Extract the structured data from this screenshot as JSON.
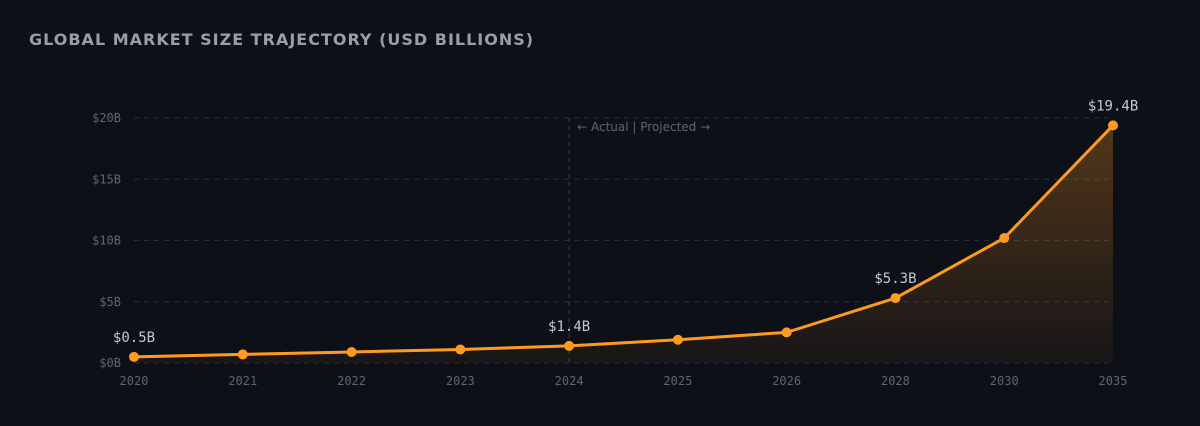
{
  "chart_data": {
    "type": "area",
    "title": "GLOBAL MARKET SIZE TRAJECTORY (USD BILLIONS)",
    "xlabel": "",
    "ylabel": "",
    "categories": [
      "2020",
      "2021",
      "2022",
      "2023",
      "2024",
      "2025",
      "2026",
      "2028",
      "2030",
      "2035"
    ],
    "series": [
      {
        "name": "Market Size (USD Billions)",
        "values": [
          0.5,
          0.7,
          0.9,
          1.1,
          1.4,
          1.9,
          2.5,
          5.3,
          10.2,
          19.4
        ]
      }
    ],
    "ylim": [
      0,
      20
    ],
    "yticks": [
      0,
      5,
      10,
      15,
      20
    ],
    "ytick_labels": [
      "$0B",
      "$5B",
      "$10B",
      "$15B",
      "$20B"
    ],
    "grid": true,
    "divider": {
      "at_category": "2024",
      "label": "← Actual | Projected →"
    },
    "data_labels": [
      {
        "category": "2020",
        "text": "$0.5B"
      },
      {
        "category": "2024",
        "text": "$1.4B"
      },
      {
        "category": "2028",
        "text": "$5.3B"
      },
      {
        "category": "2035",
        "text": "$19.4B"
      }
    ],
    "colors": {
      "line": "#ff9a1f",
      "grid": "#2a2e38",
      "background": "#0e1017"
    }
  }
}
